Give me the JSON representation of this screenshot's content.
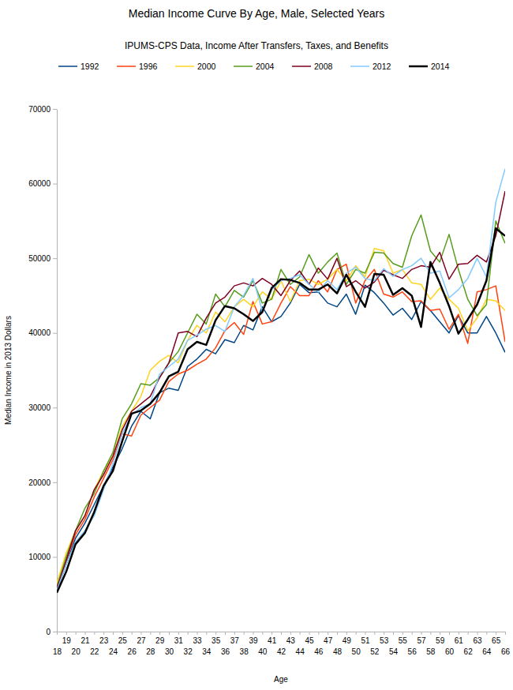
{
  "chart_data": {
    "type": "line",
    "title": "Median Income Curve By Age, Male, Selected Years",
    "subtitle": "IPUMS-CPS Data, Income After Transfers, Taxes, and Benefits",
    "x_label": "Age",
    "y_label": "Median Income in 2013 Dollars",
    "x": [
      18,
      19,
      20,
      21,
      22,
      23,
      24,
      25,
      26,
      27,
      28,
      29,
      30,
      31,
      32,
      33,
      34,
      35,
      36,
      37,
      38,
      39,
      40,
      41,
      42,
      43,
      44,
      45,
      46,
      47,
      48,
      49,
      50,
      51,
      52,
      53,
      54,
      55,
      56,
      57,
      58,
      59,
      60,
      61,
      62,
      63,
      64,
      65,
      66
    ],
    "xlim": [
      18,
      66
    ],
    "xticks": [
      18,
      19,
      20,
      21,
      22,
      23,
      24,
      25,
      26,
      27,
      28,
      29,
      30,
      31,
      32,
      33,
      34,
      35,
      36,
      37,
      38,
      39,
      40,
      41,
      42,
      43,
      44,
      45,
      46,
      47,
      48,
      49,
      50,
      51,
      52,
      53,
      54,
      55,
      56,
      57,
      58,
      59,
      60,
      61,
      62,
      63,
      64,
      65,
      66
    ],
    "ylim": [
      0,
      70000
    ],
    "yticks": [
      0,
      10000,
      20000,
      30000,
      40000,
      50000,
      60000,
      70000
    ],
    "legend": "top",
    "series": [
      {
        "name": "1992",
        "color": "#004586",
        "values": [
          5500,
          9000,
          12500,
          14500,
          17000,
          19500,
          22000,
          24500,
          27500,
          29500,
          28500,
          32000,
          32600,
          32300,
          35500,
          36500,
          37800,
          37200,
          39100,
          38700,
          41000,
          40400,
          43500,
          41500,
          42200,
          44000,
          46500,
          45400,
          45500,
          44000,
          43500,
          45200,
          42500,
          46400,
          45400,
          44000,
          42400,
          43300,
          41800,
          44200,
          43000,
          41500,
          40000,
          42300,
          40000,
          40000,
          42200,
          40000,
          37400
        ]
      },
      {
        "name": "1996",
        "color": "#ff420e",
        "values": [
          5800,
          9500,
          13000,
          15000,
          18000,
          20500,
          23000,
          26500,
          26200,
          29000,
          30000,
          31000,
          33500,
          34500,
          35000,
          35800,
          36500,
          38000,
          40300,
          41400,
          39800,
          44200,
          41200,
          41500,
          44000,
          46200,
          45000,
          45000,
          47000,
          45500,
          48500,
          49200,
          44000,
          47000,
          48500,
          45200,
          44800,
          45500,
          44200,
          44300,
          43000,
          43200,
          40500,
          42500,
          38600,
          45500,
          45800,
          46300,
          38800
        ]
      },
      {
        "name": "2000",
        "color": "#ffd320",
        "values": [
          6500,
          10500,
          13500,
          15500,
          19000,
          21500,
          23500,
          27500,
          29500,
          31500,
          35000,
          36200,
          37000,
          36000,
          39000,
          41000,
          40000,
          42800,
          41500,
          43500,
          44500,
          43500,
          45500,
          44500,
          47000,
          44200,
          47000,
          47200,
          46500,
          47200,
          48500,
          47000,
          49000,
          47500,
          51300,
          51000,
          48000,
          48500,
          46700,
          46500,
          44500,
          46000,
          44500,
          43300,
          40300,
          42000,
          44500,
          44300,
          43000
        ]
      },
      {
        "name": "2004",
        "color": "#579d1c",
        "values": [
          6000,
          10000,
          13500,
          16500,
          18500,
          21500,
          24000,
          28500,
          30500,
          33200,
          33000,
          34000,
          36000,
          37500,
          40000,
          42500,
          41200,
          45200,
          43500,
          45700,
          44800,
          47000,
          44000,
          44500,
          48500,
          46500,
          47500,
          50500,
          48000,
          49500,
          50700,
          46500,
          48500,
          48000,
          50800,
          50700,
          49300,
          48800,
          53000,
          55800,
          51000,
          49500,
          53200,
          48500,
          44500,
          42300,
          43800,
          55000,
          52000
        ]
      },
      {
        "name": "2008",
        "color": "#7e0021",
        "values": [
          5800,
          9500,
          13500,
          15500,
          19000,
          21000,
          23500,
          27000,
          29500,
          30500,
          31500,
          34000,
          36000,
          40000,
          40200,
          39500,
          42000,
          44000,
          44800,
          46300,
          46700,
          46300,
          47300,
          46500,
          45000,
          47000,
          48300,
          46500,
          48700,
          47200,
          50000,
          46200,
          47000,
          46000,
          46800,
          48400,
          47800,
          47300,
          48500,
          49000,
          48800,
          50800,
          47200,
          49200,
          49300,
          50400,
          49500,
          53000,
          59000
        ]
      },
      {
        "name": "2012",
        "color": "#83caff",
        "values": [
          5500,
          9000,
          12000,
          13500,
          15500,
          19000,
          22500,
          26500,
          29000,
          30000,
          30500,
          34500,
          35500,
          36500,
          39000,
          39700,
          40500,
          41000,
          40200,
          43500,
          45000,
          47300,
          43000,
          45800,
          47000,
          47300,
          47800,
          46500,
          45500,
          47000,
          45800,
          48000,
          48800,
          47300,
          47000,
          48600,
          47600,
          48500,
          49000,
          50000,
          48000,
          48300,
          44700,
          45800,
          47300,
          50000,
          47500,
          57500,
          62000
        ]
      },
      {
        "name": "2014",
        "color": "#000000",
        "values": [
          5200,
          8000,
          11700,
          13200,
          16000,
          19500,
          21500,
          25500,
          29200,
          29600,
          30500,
          32000,
          34200,
          34800,
          37800,
          38800,
          38400,
          41700,
          43600,
          43300,
          42500,
          41600,
          42800,
          46000,
          47200,
          47100,
          46700,
          45800,
          45800,
          46500,
          45300,
          47800,
          45500,
          43500,
          47900,
          47800,
          45100,
          46000,
          45000,
          40800,
          49500,
          46700,
          43600,
          39900,
          41800,
          43800,
          47000,
          54000,
          53000
        ]
      }
    ]
  }
}
